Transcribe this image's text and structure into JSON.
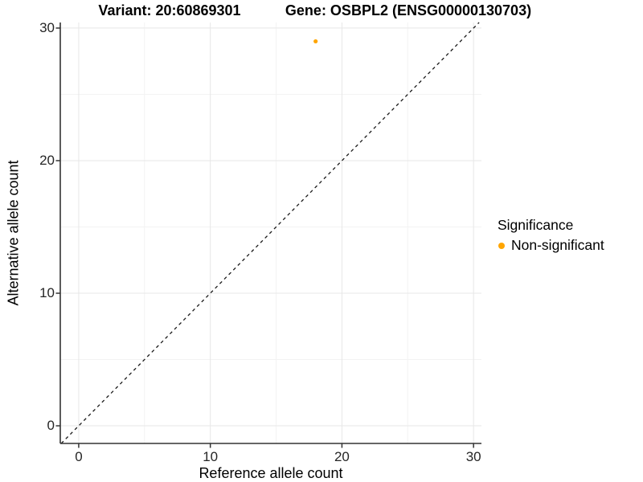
{
  "chart_data": {
    "type": "scatter",
    "titles": {
      "variant": "Variant: 20:60869301",
      "gene": "Gene: OSBPL2 (ENSG00000130703)"
    },
    "xlabel": "Reference allele count",
    "ylabel": "Alternative allele count",
    "xlim": [
      -1.4,
      30.6
    ],
    "ylim": [
      -1.33,
      30.42
    ],
    "x_ticks": [
      0,
      10,
      20,
      30
    ],
    "y_ticks": [
      0,
      10,
      20,
      30
    ],
    "x_minor_ticks": [
      5,
      15,
      25
    ],
    "y_minor_ticks": [
      5,
      15,
      25
    ],
    "grid": "major and minor gridlines, white background",
    "series": [
      {
        "name": "Non-significant",
        "color": "#FFA500",
        "points": [
          {
            "x": 18,
            "y": 29
          }
        ]
      }
    ],
    "reference_line": {
      "type": "abline",
      "slope": 1,
      "intercept": 0,
      "style": "dashed",
      "color": "#1a1a1a"
    },
    "legend": {
      "title": "Significance",
      "position": "right",
      "entries": [
        {
          "label": "Non-significant",
          "color": "#FFA500",
          "shape": "circle"
        }
      ]
    },
    "colors": {
      "axis_line": "#333333",
      "tick_mark": "#333333",
      "grid_major": "#e7e7e7",
      "grid_minor": "#f3f3f3"
    }
  }
}
